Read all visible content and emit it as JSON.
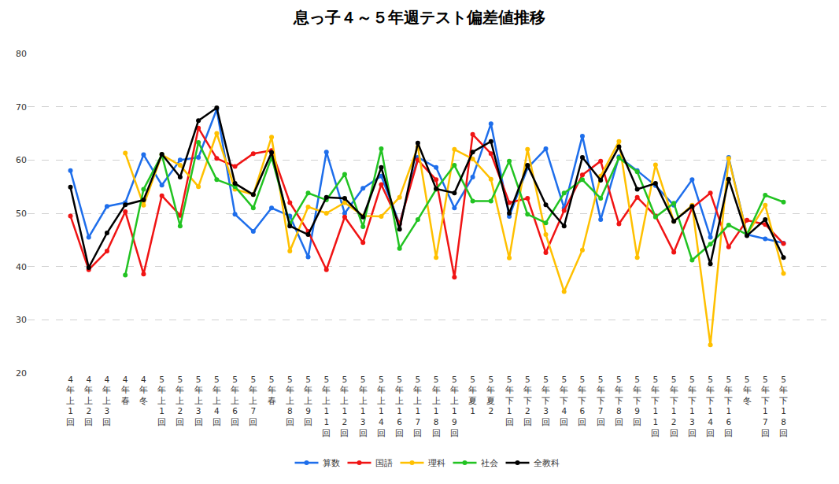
{
  "chart_data": {
    "type": "line",
    "title": "息っ子４～５年週テスト偏差値推移",
    "categories": [
      "4年上1回",
      "4年上2回",
      "4年上3回",
      "4年春",
      "4年冬",
      "5年上1回",
      "5年上2回",
      "5年上3回",
      "5年上4回",
      "5年上6回",
      "5年上7回",
      "5年春",
      "5年上8回",
      "5年上9回",
      "5年上11回",
      "5年上12回",
      "5年上13回",
      "5年上14回",
      "5年上16回",
      "5年上17回",
      "5年上18回",
      "5年上19回",
      "5年夏1",
      "5年夏2",
      "5年下1回",
      "5年下2回",
      "5年下3回",
      "5年下4回",
      "5年下6回",
      "5年下7回",
      "5年下8回",
      "5年下9回",
      "5年下11回",
      "5年下12回",
      "5年下13回",
      "5年下14回",
      "5年下16回",
      "5年冬",
      "5年下17回",
      "5年下18回"
    ],
    "series": [
      {
        "name": "算数",
        "color": "#1E6EEB",
        "values": [
          58,
          45.5,
          51.3,
          52,
          61,
          55.3,
          60,
          60.5,
          69.5,
          49.8,
          46.6,
          51,
          49.5,
          41.8,
          61.5,
          50,
          54.7,
          57,
          48,
          60.5,
          58.6,
          51,
          56.8,
          66.8,
          49.4,
          58.5,
          62.1,
          51,
          64.5,
          48.8,
          60.6,
          58,
          55.2,
          51.5,
          56.3,
          45.5,
          60.5,
          46,
          45.2,
          44.4
        ]
      },
      {
        "name": "国語",
        "color": "#F01414",
        "values": [
          49.5,
          39.4,
          42.9,
          50.3,
          38.6,
          53.3,
          49.6,
          66,
          60.3,
          58.8,
          61.2,
          61.8,
          52,
          46.6,
          39.4,
          49.3,
          44.5,
          55.4,
          48,
          60,
          56.3,
          38,
          64.8,
          61.2,
          52,
          52.8,
          42.6,
          50.5,
          57.2,
          59.8,
          48,
          53,
          49.5,
          42.7,
          51,
          53.8,
          43.7,
          48.7,
          47.9,
          44.3
        ]
      },
      {
        "name": "理科",
        "color": "#FFC000",
        "values": [
          null,
          null,
          null,
          61.3,
          51.5,
          61,
          59,
          55,
          65,
          54.5,
          53.5,
          64.3,
          42.9,
          51.2,
          50,
          52,
          49.5,
          49.4,
          53,
          62.5,
          41.7,
          62,
          60.2,
          56.4,
          41.6,
          62,
          46,
          35.3,
          43.1,
          57,
          63.5,
          41.7,
          59.1,
          48.5,
          51.5,
          25.3,
          60.3,
          46,
          51.5,
          38.7
        ]
      },
      {
        "name": "社会",
        "color": "#22C322",
        "values": [
          null,
          null,
          null,
          38.4,
          54.5,
          61,
          47.6,
          63.3,
          56.3,
          55,
          51,
          60.5,
          48,
          53.8,
          52.5,
          57.3,
          47.5,
          62.1,
          43.4,
          48.8,
          54.5,
          59,
          52.3,
          52.3,
          59.8,
          49.8,
          48.2,
          53.8,
          56.3,
          52.8,
          60.4,
          57.8,
          49.3,
          51.9,
          41.2,
          44.2,
          47.8,
          46,
          53.4,
          52.1
        ]
      },
      {
        "name": "全教科",
        "color": "#000000",
        "values": [
          54.9,
          39.8,
          46.3,
          51.6,
          52.5,
          61.1,
          56.8,
          67.4,
          69.8,
          55.6,
          53.5,
          61.4,
          47.6,
          46,
          53,
          52.8,
          49.3,
          58.6,
          47,
          63.2,
          54.6,
          53.8,
          61.5,
          63.5,
          50,
          59,
          51.6,
          47.6,
          60.5,
          56.2,
          62.5,
          54.5,
          55.6,
          48.5,
          51.3,
          40.5,
          56.4,
          45.8,
          48.8,
          41.7
        ]
      }
    ],
    "marker": "circle",
    "line_style": "solid",
    "ylim": [
      20,
      80
    ],
    "yticks": [
      20,
      30,
      40,
      50,
      60,
      70,
      80
    ],
    "grid": true,
    "legend": "bottom"
  }
}
